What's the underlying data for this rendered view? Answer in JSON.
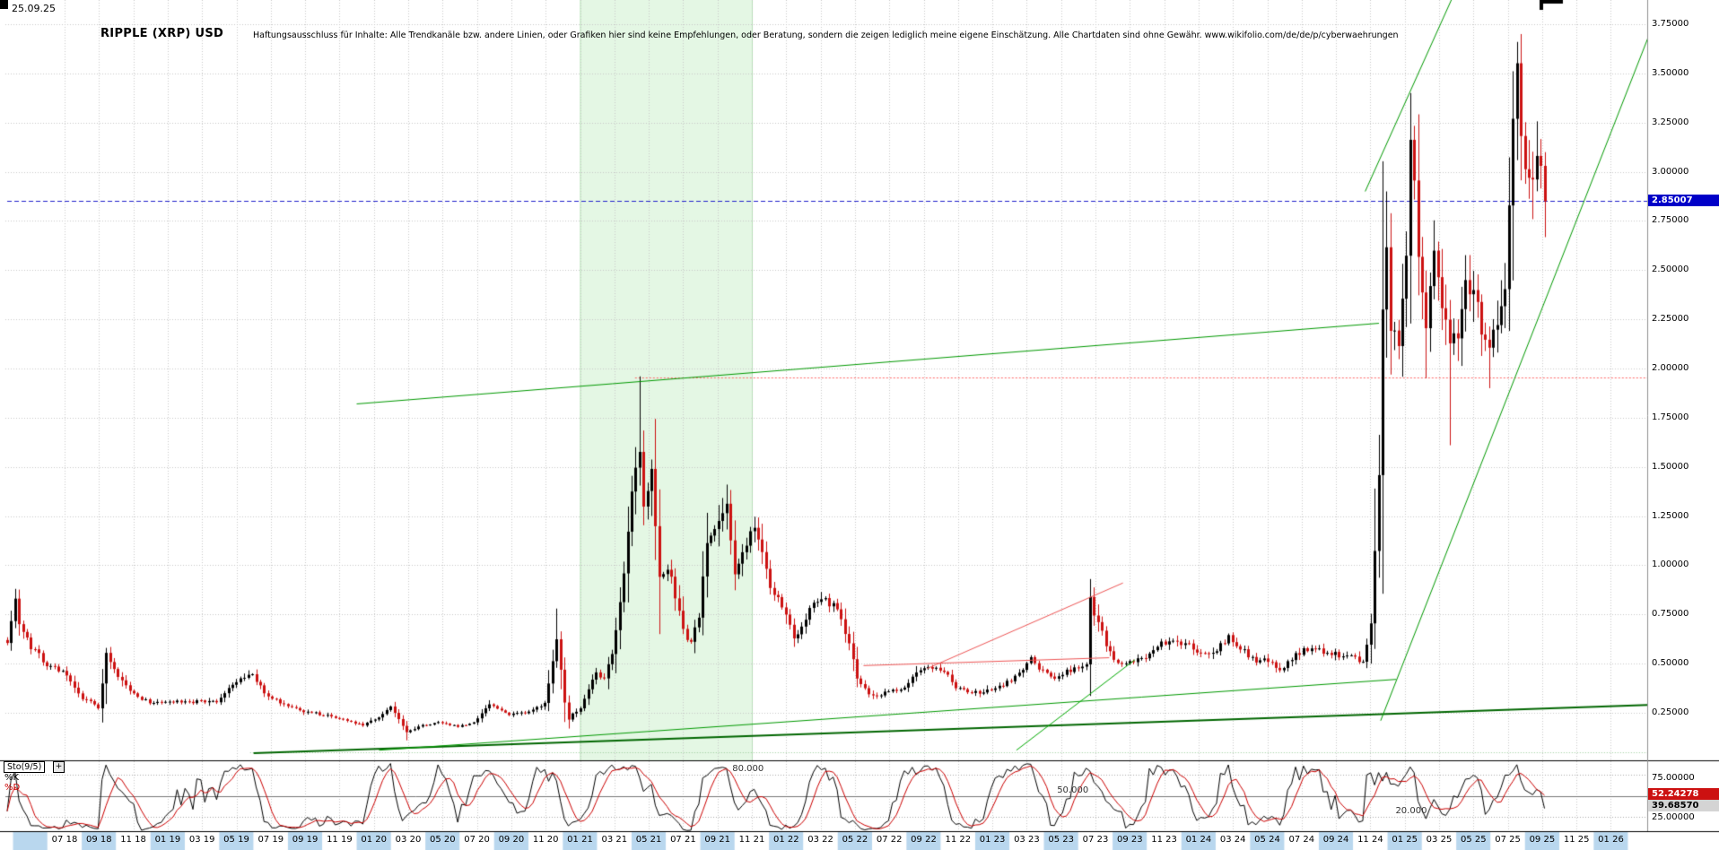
{
  "meta": {
    "date_label": "25.09.25",
    "title": "RIPPLE (XRP) USD",
    "disclaimer": "Haftungsausschluss für Inhalte: Alle Trendkanäle bzw. andere Linien, oder Grafiken hier sind keine Empfehlungen, oder Beratung, sondern die zeigen lediglich meine eigene Einschätzung. Alle Chartdaten sind ohne Gewähr.  www.wikifolio.com/de/de/p/cyberwaehrungen"
  },
  "price_axis": {
    "labels": [
      "3.75000",
      "3.50000",
      "3.25000",
      "3.00000",
      "2.75000",
      "2.50000",
      "2.25000",
      "2.00000",
      "1.75000",
      "1.50000",
      "1.25000",
      "1.00000",
      "0.75000",
      "0.50000",
      "0.25000"
    ],
    "current_price": 2.85007,
    "current_price_label": "2.85007",
    "max": 3.75,
    "min": 0.25,
    "step": 0.25
  },
  "x_axis": {
    "labels": [
      "07 18",
      "09 18",
      "11 18",
      "01 19",
      "03 19",
      "05 19",
      "07 19",
      "09 19",
      "11 19",
      "01 20",
      "03 20",
      "05 20",
      "07 20",
      "09 20",
      "11 20",
      "01 21",
      "03 21",
      "05 21",
      "07 21",
      "09 21",
      "11 21",
      "01 22",
      "03 22",
      "05 22",
      "07 22",
      "09 22",
      "11 22",
      "01 23",
      "03 23",
      "05 23",
      "07 23",
      "09 23",
      "11 23",
      "01 24",
      "03 24",
      "05 24",
      "07 24",
      "09 24",
      "11 24",
      "01 25",
      "03 25",
      "05 25",
      "07 25",
      "09 25",
      "11 25",
      "01 26"
    ]
  },
  "indicator": {
    "name": "Sto(9/5)",
    "expand_label": "+",
    "k_label": "%K",
    "d_label": "%D",
    "axis_labels": [
      "75.00000",
      "25.00000"
    ],
    "d_value": "52.24278",
    "k_value": "39.68570",
    "level_labels": [
      "80.000",
      "50.000",
      "20.000"
    ],
    "levels": [
      80,
      50,
      20
    ]
  },
  "colors": {
    "up_candle": "#000000",
    "down_candle": "#cc1111",
    "grid": "#c9c9c9",
    "band_fill": "#e4f7e4",
    "band_edge": "#b5e6b5",
    "current_line": "#2222cc",
    "k_line": "#000000",
    "d_line": "#cc0000",
    "date_band": "#b9d7ee"
  },
  "chart_data": {
    "type": "candlestick",
    "title": "RIPPLE (XRP) USD",
    "timeframe": "weekly",
    "x_range_labels": [
      "07 18",
      "01 26"
    ],
    "ylim": [
      0.02,
      3.87
    ],
    "current_price": 2.85007,
    "price_anchors": [
      [
        0,
        0.62
      ],
      [
        2,
        0.82
      ],
      [
        3,
        0.7
      ],
      [
        6,
        0.58
      ],
      [
        10,
        0.5
      ],
      [
        14,
        0.46
      ],
      [
        18,
        0.34
      ],
      [
        23,
        0.28
      ],
      [
        25,
        0.54
      ],
      [
        27,
        0.46
      ],
      [
        31,
        0.36
      ],
      [
        36,
        0.3
      ],
      [
        40,
        0.31
      ],
      [
        45,
        0.3
      ],
      [
        49,
        0.31
      ],
      [
        53,
        0.3
      ],
      [
        57,
        0.4
      ],
      [
        62,
        0.44
      ],
      [
        66,
        0.33
      ],
      [
        71,
        0.29
      ],
      [
        75,
        0.26
      ],
      [
        80,
        0.24
      ],
      [
        84,
        0.22
      ],
      [
        90,
        0.19
      ],
      [
        94,
        0.23
      ],
      [
        97,
        0.28
      ],
      [
        101,
        0.15
      ],
      [
        105,
        0.19
      ],
      [
        110,
        0.2
      ],
      [
        114,
        0.18
      ],
      [
        118,
        0.2
      ],
      [
        122,
        0.29
      ],
      [
        127,
        0.24
      ],
      [
        132,
        0.25
      ],
      [
        136,
        0.3
      ],
      [
        139,
        0.62
      ],
      [
        141,
        0.3
      ],
      [
        142,
        0.22
      ],
      [
        145,
        0.28
      ],
      [
        149,
        0.46
      ],
      [
        151,
        0.42
      ],
      [
        153,
        0.55
      ],
      [
        156,
        0.95
      ],
      [
        158,
        1.35
      ],
      [
        160,
        1.58
      ],
      [
        161,
        1.3
      ],
      [
        163,
        1.45
      ],
      [
        165,
        0.92
      ],
      [
        167,
        1.0
      ],
      [
        169,
        0.84
      ],
      [
        171,
        0.66
      ],
      [
        173,
        0.6
      ],
      [
        175,
        0.74
      ],
      [
        177,
        1.1
      ],
      [
        180,
        1.22
      ],
      [
        182,
        1.32
      ],
      [
        184,
        0.98
      ],
      [
        186,
        1.08
      ],
      [
        189,
        1.18
      ],
      [
        191,
        1.05
      ],
      [
        193,
        0.88
      ],
      [
        196,
        0.8
      ],
      [
        199,
        0.62
      ],
      [
        201,
        0.7
      ],
      [
        203,
        0.78
      ],
      [
        207,
        0.84
      ],
      [
        210,
        0.76
      ],
      [
        213,
        0.6
      ],
      [
        215,
        0.42
      ],
      [
        219,
        0.33
      ],
      [
        223,
        0.36
      ],
      [
        227,
        0.38
      ],
      [
        230,
        0.46
      ],
      [
        234,
        0.48
      ],
      [
        238,
        0.44
      ],
      [
        240,
        0.38
      ],
      [
        244,
        0.35
      ],
      [
        248,
        0.36
      ],
      [
        252,
        0.39
      ],
      [
        256,
        0.45
      ],
      [
        259,
        0.52
      ],
      [
        262,
        0.46
      ],
      [
        265,
        0.43
      ],
      [
        269,
        0.47
      ],
      [
        273,
        0.5
      ],
      [
        274,
        0.82
      ],
      [
        276,
        0.7
      ],
      [
        278,
        0.6
      ],
      [
        280,
        0.52
      ],
      [
        283,
        0.5
      ],
      [
        287,
        0.52
      ],
      [
        291,
        0.6
      ],
      [
        295,
        0.62
      ],
      [
        299,
        0.6
      ],
      [
        302,
        0.55
      ],
      [
        306,
        0.57
      ],
      [
        309,
        0.63
      ],
      [
        312,
        0.58
      ],
      [
        315,
        0.52
      ],
      [
        319,
        0.51
      ],
      [
        322,
        0.47
      ],
      [
        326,
        0.55
      ],
      [
        330,
        0.58
      ],
      [
        334,
        0.56
      ],
      [
        339,
        0.53
      ],
      [
        343,
        0.52
      ],
      [
        345,
        0.7
      ],
      [
        346,
        1.1
      ],
      [
        347,
        1.45
      ],
      [
        348,
        2.3
      ],
      [
        349,
        2.55
      ],
      [
        350,
        2.25
      ],
      [
        352,
        2.15
      ],
      [
        354,
        2.55
      ],
      [
        355,
        3.15
      ],
      [
        356,
        2.95
      ],
      [
        357,
        2.55
      ],
      [
        359,
        2.25
      ],
      [
        361,
        2.55
      ],
      [
        363,
        2.35
      ],
      [
        365,
        2.1
      ],
      [
        367,
        2.15
      ],
      [
        369,
        2.45
      ],
      [
        371,
        2.38
      ],
      [
        373,
        2.22
      ],
      [
        375,
        2.15
      ],
      [
        377,
        2.25
      ],
      [
        379,
        2.45
      ],
      [
        381,
        3.25
      ],
      [
        382,
        3.5
      ],
      [
        383,
        3.1
      ],
      [
        385,
        2.98
      ],
      [
        387,
        3.05
      ],
      [
        389,
        2.85
      ]
    ],
    "wick_highs": [
      [
        2,
        0.88
      ],
      [
        25,
        0.58
      ],
      [
        139,
        0.78
      ],
      [
        160,
        1.96
      ],
      [
        182,
        1.41
      ],
      [
        274,
        0.93
      ],
      [
        349,
        2.9
      ],
      [
        355,
        3.4
      ],
      [
        382,
        3.66
      ]
    ],
    "wick_lows": [
      [
        101,
        0.11
      ],
      [
        142,
        0.17
      ],
      [
        165,
        0.65
      ],
      [
        215,
        0.38
      ],
      [
        345,
        0.5
      ],
      [
        359,
        1.95
      ],
      [
        365,
        1.61
      ],
      [
        375,
        1.9
      ]
    ],
    "weeks": 390,
    "shaded_region": {
      "start_month": 30,
      "end_month": 40
    },
    "trend_lines": [
      {
        "name": "long-resistance",
        "color": "#009900",
        "width": 1,
        "points": [
          [
            17,
            1.82
          ],
          [
            76.5,
            2.23
          ]
        ]
      },
      {
        "name": "long-support",
        "color": "#006600",
        "width": 2,
        "points": [
          [
            11,
            0.045
          ],
          [
            92.2,
            0.29
          ]
        ]
      },
      {
        "name": "mid-support",
        "color": "#009900",
        "width": 1,
        "points": [
          [
            18.3,
            0.06
          ],
          [
            77.5,
            0.42
          ]
        ]
      },
      {
        "name": "steep-channel-upper",
        "color": "#009900",
        "width": 1,
        "points": [
          [
            75.7,
            2.9
          ],
          [
            80.8,
            3.89
          ]
        ]
      },
      {
        "name": "steep-channel-lower",
        "color": "#009900",
        "width": 1,
        "points": [
          [
            76.6,
            0.21
          ],
          [
            92.2,
            3.69
          ]
        ]
      },
      {
        "name": "breakout-line-2023",
        "color": "#00aa00",
        "width": 1,
        "points": [
          [
            55.4,
            0.06
          ],
          [
            62.3,
            0.52
          ]
        ]
      },
      {
        "name": "red-flat-line-2023",
        "color": "#ee5555",
        "width": 1,
        "points": [
          [
            46.5,
            0.49
          ],
          [
            60.8,
            0.53
          ]
        ]
      },
      {
        "name": "red-rising-line-2023",
        "color": "#ee5555",
        "width": 1,
        "points": [
          [
            50.2,
            0.475
          ],
          [
            61.6,
            0.91
          ]
        ]
      }
    ],
    "h_lines": [
      {
        "name": "prior-ath-resistance",
        "price": 1.955,
        "from_month": 33.2,
        "color": "#ff6666",
        "dash": [
          2,
          2
        ]
      },
      {
        "name": "current-price-line",
        "price": 2.85007,
        "from_month": -3.34,
        "color": "#2222cc",
        "dash": [
          5,
          3
        ]
      },
      {
        "name": "base-dotted-support",
        "price": 0.05,
        "from_month": 10.8,
        "color": "#99cc99",
        "dash": [
          1,
          2
        ]
      }
    ],
    "stochastic": {
      "period": 9,
      "smoothing": 5,
      "d_last": 52.24278,
      "k_last": 39.6857
    }
  }
}
